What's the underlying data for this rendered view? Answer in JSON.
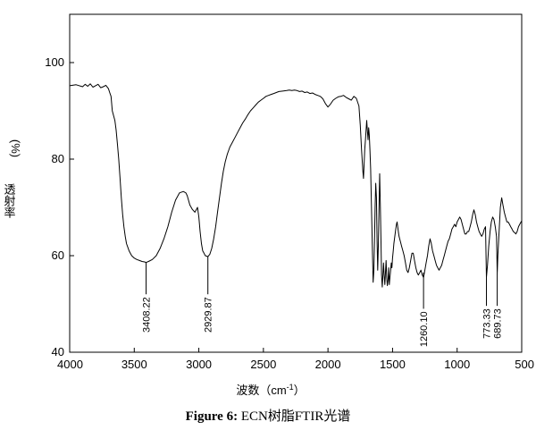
{
  "chart_data": {
    "type": "line",
    "xlabel": "波数（cm",
    "xlabel_sup": "-1",
    "xlabel_close": "）",
    "ylabel_unit": "(%)",
    "ylabel": "透射率",
    "xlim": [
      4000,
      500
    ],
    "ylim": [
      40,
      110
    ],
    "x_ticks": [
      {
        "value": 4000,
        "label": "4000"
      },
      {
        "value": 3500,
        "label": "3500"
      },
      {
        "value": 3000,
        "label": "3000"
      },
      {
        "value": 2500,
        "label": "2500"
      },
      {
        "value": 2000,
        "label": "2000"
      },
      {
        "value": 1500,
        "label": "1500"
      },
      {
        "value": 1000,
        "label": "1000"
      },
      {
        "value": 500,
        "label": "500"
      }
    ],
    "y_ticks": [
      {
        "value": 40,
        "label": "40"
      },
      {
        "value": 60,
        "label": "60"
      },
      {
        "value": 80,
        "label": "80"
      },
      {
        "value": 100,
        "label": "100"
      }
    ],
    "grid": false,
    "annotations": [
      {
        "label": "3408.22",
        "x": 3408.22,
        "y": 58.6,
        "label_y": 52
      },
      {
        "label": "2929.87",
        "x": 2929.87,
        "y": 59.8,
        "label_y": 52
      },
      {
        "label": "1260.10",
        "x": 1260.1,
        "y": 56.5,
        "label_y": 49
      },
      {
        "label": "773.33",
        "x": 773.33,
        "y": 55.5,
        "label_y": 49.6
      },
      {
        "label": "689.73",
        "x": 689.73,
        "y": 56.3,
        "label_y": 49.6
      }
    ],
    "series": [
      {
        "x": [
          4000,
          3950,
          3900,
          3880,
          3860,
          3840,
          3820,
          3800,
          3780,
          3760,
          3740,
          3720,
          3700,
          3690,
          3680,
          3670,
          3650,
          3640,
          3630,
          3620,
          3610,
          3600,
          3590,
          3580,
          3570,
          3560,
          3540,
          3520,
          3500,
          3480,
          3460,
          3440,
          3420,
          3408.22,
          3390,
          3360,
          3330,
          3300,
          3270,
          3240,
          3210,
          3180,
          3150,
          3120,
          3100,
          3090,
          3080,
          3070,
          3050,
          3030,
          3010,
          3000,
          2990,
          2980,
          2970,
          2960,
          2950,
          2940,
          2929.87,
          2915,
          2900,
          2885,
          2870,
          2855,
          2840,
          2825,
          2810,
          2795,
          2780,
          2760,
          2740,
          2720,
          2700,
          2680,
          2660,
          2640,
          2620,
          2600,
          2580,
          2560,
          2540,
          2520,
          2500,
          2480,
          2460,
          2440,
          2420,
          2400,
          2380,
          2350,
          2320,
          2300,
          2280,
          2260,
          2240,
          2220,
          2200,
          2180,
          2160,
          2140,
          2120,
          2100,
          2080,
          2060,
          2040,
          2020,
          2000,
          1980,
          1960,
          1940,
          1920,
          1900,
          1880,
          1860,
          1840,
          1820,
          1800,
          1780,
          1760,
          1750,
          1740,
          1730,
          1725,
          1720,
          1715,
          1710,
          1705,
          1700,
          1695,
          1690,
          1685,
          1680,
          1675,
          1670,
          1665,
          1660,
          1655,
          1650,
          1645,
          1640,
          1635,
          1630,
          1625,
          1620,
          1615,
          1610,
          1605,
          1600,
          1595,
          1590,
          1585,
          1580,
          1575,
          1570,
          1565,
          1560,
          1555,
          1550,
          1545,
          1540,
          1535,
          1530,
          1525,
          1520,
          1515,
          1510,
          1505,
          1500,
          1495,
          1490,
          1485,
          1480,
          1475,
          1470,
          1465,
          1460,
          1455,
          1450,
          1440,
          1430,
          1420,
          1410,
          1400,
          1390,
          1380,
          1370,
          1360,
          1350,
          1340,
          1330,
          1320,
          1310,
          1300,
          1290,
          1280,
          1270,
          1260.1,
          1250,
          1240,
          1230,
          1220,
          1210,
          1200,
          1190,
          1180,
          1170,
          1160,
          1150,
          1140,
          1130,
          1120,
          1110,
          1100,
          1090,
          1080,
          1070,
          1060,
          1050,
          1040,
          1030,
          1020,
          1010,
          1000,
          990,
          980,
          970,
          960,
          950,
          940,
          930,
          920,
          910,
          900,
          890,
          880,
          870,
          860,
          850,
          840,
          830,
          820,
          810,
          800,
          790,
          780,
          773.33,
          765,
          755,
          745,
          735,
          725,
          715,
          705,
          695,
          689.73,
          685,
          675,
          665,
          655,
          645,
          635,
          625,
          615,
          605,
          595,
          585,
          575,
          565,
          555,
          545,
          535,
          525,
          515,
          505,
          500
        ],
        "y": [
          95.2,
          95.4,
          95.0,
          95.5,
          95.1,
          95.6,
          94.9,
          95.2,
          95.5,
          94.8,
          95.0,
          95.3,
          94.6,
          93.8,
          93.0,
          90.0,
          88.0,
          86.0,
          83.0,
          80.0,
          76.0,
          72.0,
          68.5,
          66.0,
          64.0,
          62.5,
          61.0,
          60.0,
          59.5,
          59.2,
          59.0,
          58.8,
          58.7,
          58.6,
          58.8,
          59.2,
          60.0,
          61.5,
          63.5,
          66.0,
          69.0,
          71.5,
          73.0,
          73.3,
          73.0,
          72.4,
          71.5,
          70.5,
          69.6,
          69.0,
          70.0,
          68.0,
          65.0,
          62.5,
          61.0,
          60.5,
          60.0,
          59.9,
          59.8,
          60.3,
          61.5,
          63.5,
          66.0,
          69.0,
          72.0,
          75.0,
          77.5,
          79.5,
          81.0,
          82.5,
          83.5,
          84.5,
          85.5,
          86.5,
          87.5,
          88.3,
          89.2,
          90.0,
          90.6,
          91.2,
          91.8,
          92.2,
          92.6,
          93.0,
          93.2,
          93.4,
          93.6,
          93.8,
          94.0,
          94.1,
          94.2,
          94.3,
          94.2,
          94.3,
          94.2,
          94.0,
          94.1,
          93.8,
          93.9,
          93.6,
          93.7,
          93.4,
          93.2,
          93.0,
          92.5,
          91.5,
          90.8,
          91.4,
          92.2,
          92.6,
          92.9,
          93.0,
          93.2,
          92.8,
          92.5,
          92.2,
          93.0,
          92.6,
          91.0,
          87.0,
          82.0,
          77.5,
          76.0,
          79.0,
          82.0,
          84.0,
          86.0,
          88.0,
          86.0,
          84.0,
          86.5,
          85.0,
          82.0,
          78.0,
          72.0,
          66.0,
          60.0,
          54.5,
          57.0,
          63.0,
          70.0,
          75.0,
          72.0,
          63.0,
          57.0,
          62.0,
          69.0,
          77.0,
          71.0,
          64.0,
          56.0,
          53.5,
          56.0,
          58.5,
          56.0,
          54.0,
          56.5,
          59.0,
          55.5,
          53.8,
          55.0,
          57.5,
          54.0,
          55.5,
          57.0,
          58.5,
          57.5,
          59.5,
          61.0,
          62.5,
          63.5,
          64.5,
          65.5,
          66.5,
          67.0,
          66.0,
          65.0,
          64.0,
          63.0,
          62.0,
          61.0,
          60.0,
          58.5,
          57.0,
          56.5,
          57.5,
          59.0,
          60.5,
          60.5,
          59.0,
          57.5,
          56.5,
          56.0,
          56.5,
          57.0,
          56.0,
          55.5,
          57.0,
          58.5,
          60.0,
          62.0,
          63.5,
          62.5,
          61.0,
          60.0,
          59.0,
          58.0,
          57.5,
          57.0,
          57.5,
          58.0,
          59.0,
          60.0,
          61.0,
          62.0,
          63.0,
          63.5,
          64.5,
          65.5,
          66.0,
          66.5,
          66.0,
          67.0,
          67.5,
          68.0,
          67.5,
          66.5,
          65.5,
          64.5,
          64.5,
          65.0,
          65.0,
          66.0,
          67.0,
          68.5,
          69.5,
          68.5,
          67.0,
          66.0,
          65.0,
          64.5,
          64.0,
          64.5,
          65.5,
          66.0,
          55.5,
          58.0,
          62.0,
          65.0,
          67.0,
          68.0,
          67.5,
          66.0,
          64.0,
          56.3,
          60.0,
          65.0,
          70.0,
          72.0,
          70.5,
          69.0,
          68.0,
          67.0,
          67.0,
          66.5,
          66.0,
          65.5,
          65.0,
          64.8,
          64.5,
          65.0,
          66.0,
          66.5,
          67.0,
          67.2
        ]
      }
    ]
  },
  "caption": {
    "bold": "Figure 6:",
    "text": " ECN树脂FTIR光谱"
  }
}
